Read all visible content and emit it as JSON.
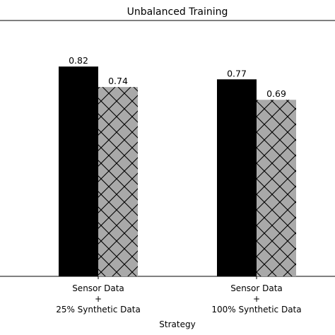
{
  "chart_data": {
    "type": "bar",
    "title": "Unbalanced Training",
    "xlabel": "Strategy",
    "ylabel": "",
    "ylim": [
      0,
      1.0
    ],
    "grid": false,
    "categories": [
      [
        "Sensor Data",
        "+",
        "25% Synthetic Data"
      ],
      [
        "Sensor Data",
        "+",
        "100% Synthetic Data"
      ]
    ],
    "series": [
      {
        "values": [
          0.82,
          0.77
        ],
        "color": "#000000",
        "pattern": "solid"
      },
      {
        "values": [
          0.74,
          0.69
        ],
        "color": "#a9a9a9",
        "pattern": "crosshatch"
      }
    ],
    "data_labels": [
      [
        "0.82",
        "0.77"
      ],
      [
        "0.74",
        "0.69"
      ]
    ]
  }
}
